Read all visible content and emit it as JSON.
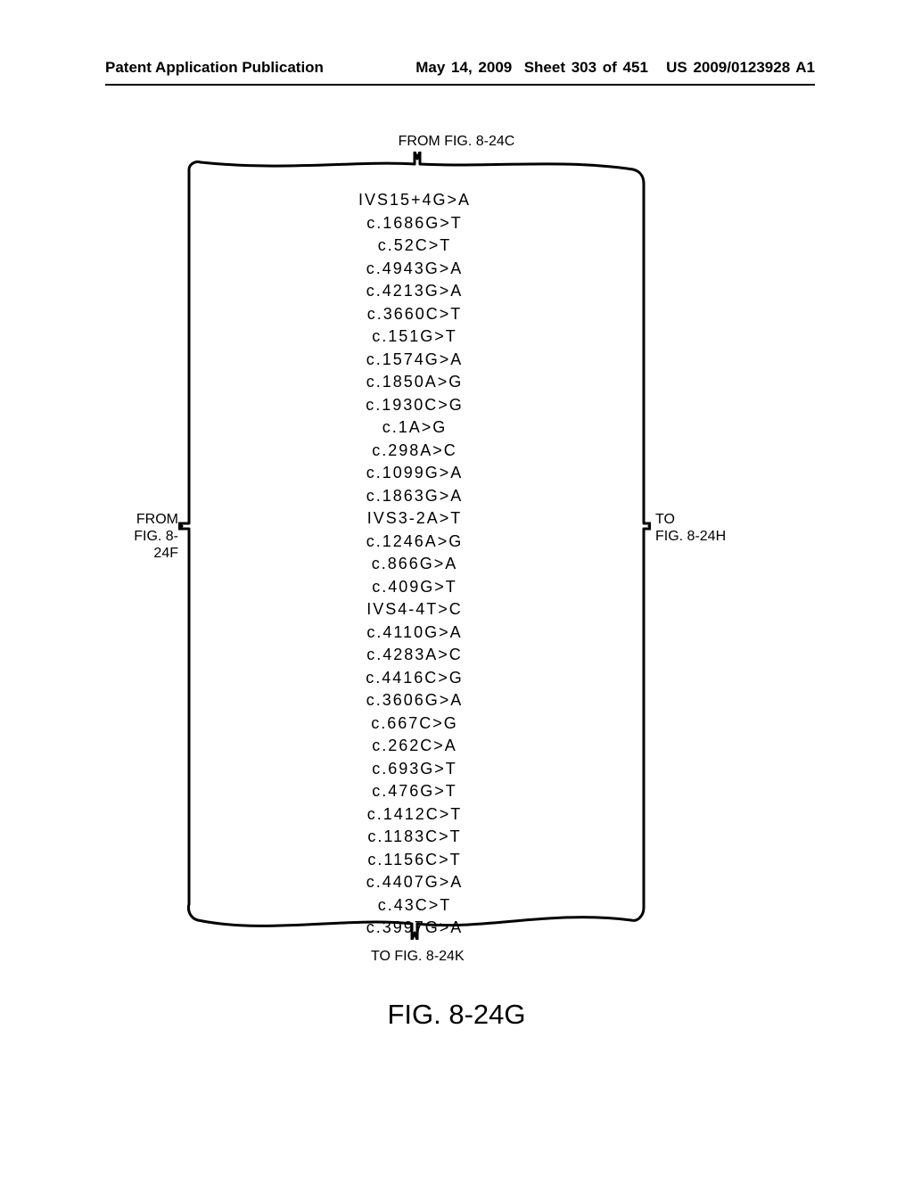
{
  "header": {
    "left": "Patent Application Publication",
    "date": "May 14, 2009",
    "sheet": "Sheet 303 of 451",
    "pubno": "US 2009/0123928 A1"
  },
  "panel": {
    "stroke": "#000000",
    "stroke_width": 3,
    "fill": "#ffffff"
  },
  "connectors": {
    "top": {
      "label": "FROM FIG. 8-24C"
    },
    "bottom": {
      "label": "TO FIG. 8-24K"
    },
    "left": {
      "label_line1": "FROM",
      "label_line2": "FIG. 8-24F"
    },
    "right": {
      "label_line1": "TO",
      "label_line2": "FIG. 8-24H"
    }
  },
  "mutations": [
    "IVS15+4G>A",
    "c.1686G>T",
    "c.52C>T",
    "c.4943G>A",
    "c.4213G>A",
    "c.3660C>T",
    "c.151G>T",
    "c.1574G>A",
    "c.1850A>G",
    "c.1930C>G",
    "c.1A>G",
    "c.298A>C",
    "c.1099G>A",
    "c.1863G>A",
    "IVS3-2A>T",
    "c.1246A>G",
    "c.866G>A",
    "c.409G>T",
    "IVS4-4T>C",
    "c.4110G>A",
    "c.4283A>C",
    "c.4416C>G",
    "c.3606G>A",
    "c.667C>G",
    "c.262C>A",
    "c.693G>T",
    "c.476G>T",
    "c.1412C>T",
    "c.1183C>T",
    "c.1156C>T",
    "c.4407G>A",
    "c.43C>T",
    "c.3997G>A"
  ],
  "figure_caption": "FIG. 8-24G",
  "typography": {
    "header_fontsize": 17,
    "list_fontsize": 18,
    "label_fontsize": 16,
    "caption_fontsize": 31,
    "text_color": "#000000",
    "background_color": "#ffffff"
  }
}
